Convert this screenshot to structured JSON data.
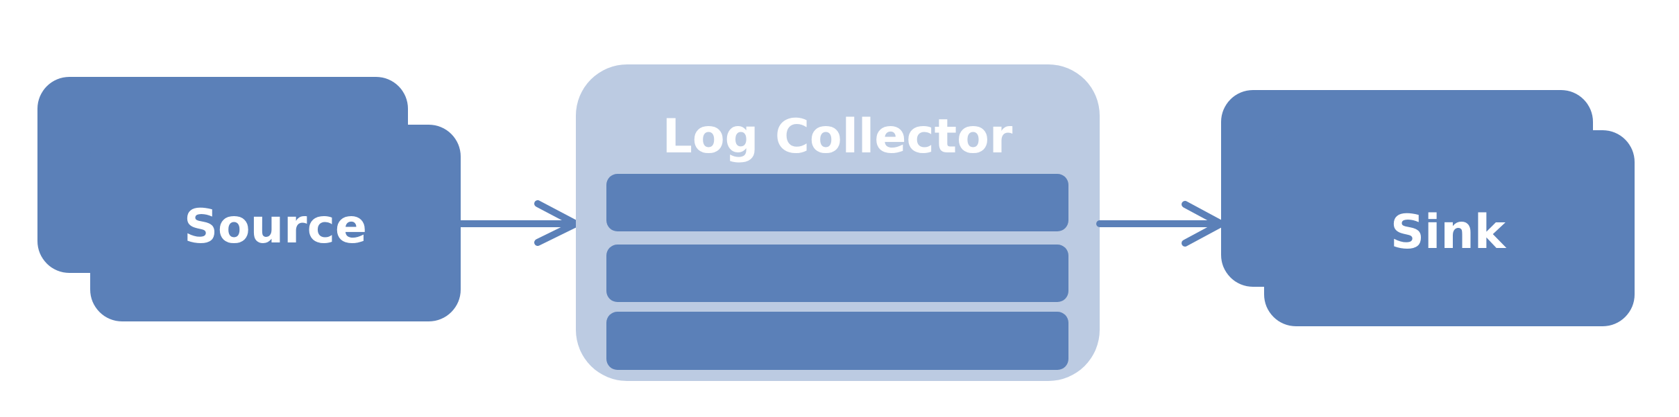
{
  "diagram": {
    "nodes": {
      "source": {
        "label": "Source"
      },
      "collector": {
        "label": "Log Collector",
        "rows": 3
      },
      "sink": {
        "label": "Sink"
      }
    },
    "edges": [
      {
        "from": "source",
        "to": "collector"
      },
      {
        "from": "collector",
        "to": "sink"
      }
    ],
    "colors": {
      "node": "#5b80b8",
      "container": "#bccbe2",
      "text": "#ffffff",
      "arrow": "#5b80b8"
    }
  }
}
